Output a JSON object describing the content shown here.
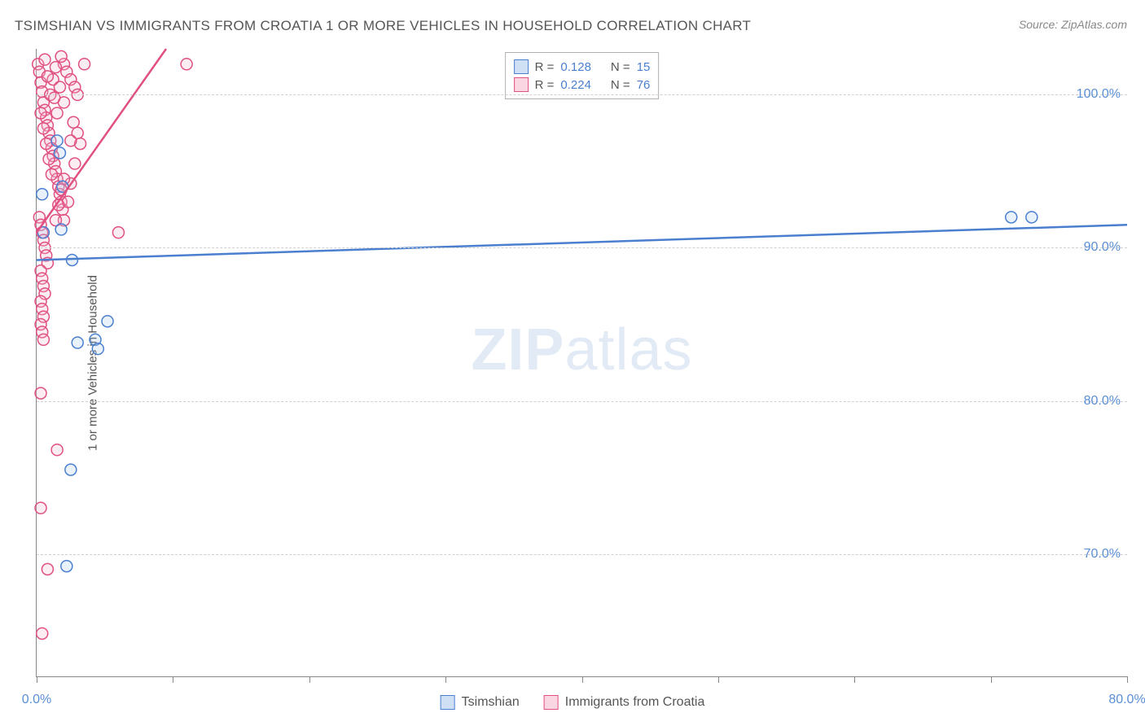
{
  "title": "TSIMSHIAN VS IMMIGRANTS FROM CROATIA 1 OR MORE VEHICLES IN HOUSEHOLD CORRELATION CHART",
  "source": "Source: ZipAtlas.com",
  "y_axis_label": "1 or more Vehicles in Household",
  "watermark": {
    "bold": "ZIP",
    "thin": "atlas"
  },
  "chart": {
    "type": "scatter",
    "xlim": [
      0,
      80
    ],
    "ylim": [
      62,
      103
    ],
    "x_ticks": [
      0,
      10,
      20,
      30,
      40,
      50,
      60,
      70,
      80
    ],
    "x_tick_labels": {
      "0": "0.0%",
      "80": "80.0%"
    },
    "y_ticks": [
      70,
      80,
      90,
      100
    ],
    "y_tick_labels": [
      "70.0%",
      "80.0%",
      "90.0%",
      "100.0%"
    ],
    "background_color": "#ffffff",
    "grid_color": "#d0d0d0",
    "axis_color": "#888888",
    "tick_label_color": "#5a8fd6",
    "title_color": "#555555",
    "marker_radius": 7,
    "marker_stroke_width": 1.5,
    "marker_fill_opacity": 0.25,
    "line_width": 2.5
  },
  "series": [
    {
      "name": "Tsimshian",
      "color_stroke": "#4a7fd0",
      "color_fill": "#a9c6ea",
      "swatch_fill": "#cfe0f5",
      "swatch_border": "#4a7fd0",
      "R": "0.128",
      "N": "15",
      "trend": {
        "x1": 0,
        "y1": 89.2,
        "x2": 80,
        "y2": 91.5
      },
      "points": [
        [
          0.4,
          93.5
        ],
        [
          0.5,
          91.0
        ],
        [
          1.5,
          97.0
        ],
        [
          1.7,
          96.2
        ],
        [
          1.8,
          91.2
        ],
        [
          1.9,
          94.0
        ],
        [
          2.2,
          69.2
        ],
        [
          2.5,
          75.5
        ],
        [
          2.6,
          89.2
        ],
        [
          3.0,
          83.8
        ],
        [
          4.3,
          84.0
        ],
        [
          4.5,
          83.4
        ],
        [
          5.2,
          85.2
        ],
        [
          71.5,
          92.0
        ],
        [
          73.0,
          92.0
        ]
      ]
    },
    {
      "name": "Immigrants from Croatia",
      "color_stroke": "#e05080",
      "color_fill": "#f4b8ce",
      "swatch_fill": "#fad6e3",
      "swatch_border": "#e05080",
      "R": "0.224",
      "N": "76",
      "trend": {
        "x1": 0,
        "y1": 91.0,
        "x2": 9.5,
        "y2": 103.0
      },
      "points": [
        [
          0.1,
          102.0
        ],
        [
          0.2,
          101.5
        ],
        [
          0.3,
          100.8
        ],
        [
          0.4,
          100.2
        ],
        [
          0.5,
          99.5
        ],
        [
          0.6,
          99.0
        ],
        [
          0.7,
          98.5
        ],
        [
          0.8,
          98.0
        ],
        [
          0.9,
          97.5
        ],
        [
          1.0,
          97.0
        ],
        [
          1.1,
          96.5
        ],
        [
          1.2,
          96.0
        ],
        [
          1.3,
          95.5
        ],
        [
          1.4,
          95.0
        ],
        [
          1.5,
          94.5
        ],
        [
          1.6,
          94.0
        ],
        [
          1.7,
          93.5
        ],
        [
          1.8,
          93.0
        ],
        [
          1.9,
          92.5
        ],
        [
          0.2,
          92.0
        ],
        [
          0.3,
          91.5
        ],
        [
          0.4,
          91.0
        ],
        [
          0.5,
          90.5
        ],
        [
          0.6,
          90.0
        ],
        [
          0.7,
          89.5
        ],
        [
          0.8,
          89.0
        ],
        [
          0.3,
          88.5
        ],
        [
          0.4,
          88.0
        ],
        [
          0.5,
          87.5
        ],
        [
          0.6,
          87.0
        ],
        [
          0.3,
          86.5
        ],
        [
          0.4,
          86.0
        ],
        [
          0.5,
          85.5
        ],
        [
          0.3,
          85.0
        ],
        [
          0.4,
          84.5
        ],
        [
          0.5,
          84.0
        ],
        [
          0.3,
          80.5
        ],
        [
          1.5,
          76.8
        ],
        [
          0.3,
          73.0
        ],
        [
          0.8,
          69.0
        ],
        [
          0.4,
          64.8
        ],
        [
          2.0,
          102.0
        ],
        [
          2.2,
          101.5
        ],
        [
          2.5,
          101.0
        ],
        [
          2.8,
          100.5
        ],
        [
          3.0,
          100.0
        ],
        [
          3.5,
          102.0
        ],
        [
          3.0,
          97.5
        ],
        [
          3.2,
          96.8
        ],
        [
          2.8,
          95.5
        ],
        [
          2.5,
          94.2
        ],
        [
          2.3,
          93.0
        ],
        [
          2.0,
          91.8
        ],
        [
          1.2,
          101.0
        ],
        [
          1.4,
          101.8
        ],
        [
          1.8,
          102.5
        ],
        [
          1.0,
          100.0
        ],
        [
          0.8,
          101.2
        ],
        [
          0.6,
          102.3
        ],
        [
          2.5,
          97.0
        ],
        [
          2.7,
          98.2
        ],
        [
          2.0,
          99.5
        ],
        [
          1.5,
          98.8
        ],
        [
          1.3,
          99.8
        ],
        [
          1.7,
          100.5
        ],
        [
          0.9,
          95.8
        ],
        [
          1.1,
          94.8
        ],
        [
          0.7,
          96.8
        ],
        [
          0.5,
          97.8
        ],
        [
          0.3,
          98.8
        ],
        [
          2.0,
          94.5
        ],
        [
          1.8,
          93.8
        ],
        [
          1.6,
          92.8
        ],
        [
          1.4,
          91.8
        ],
        [
          6.0,
          91.0
        ],
        [
          11.0,
          102.0
        ]
      ]
    }
  ],
  "legend_top": {
    "r_label": "R =",
    "n_label": "N ="
  },
  "legend_bottom": [
    {
      "label": "Tsimshian",
      "series_idx": 0
    },
    {
      "label": "Immigrants from Croatia",
      "series_idx": 1
    }
  ]
}
